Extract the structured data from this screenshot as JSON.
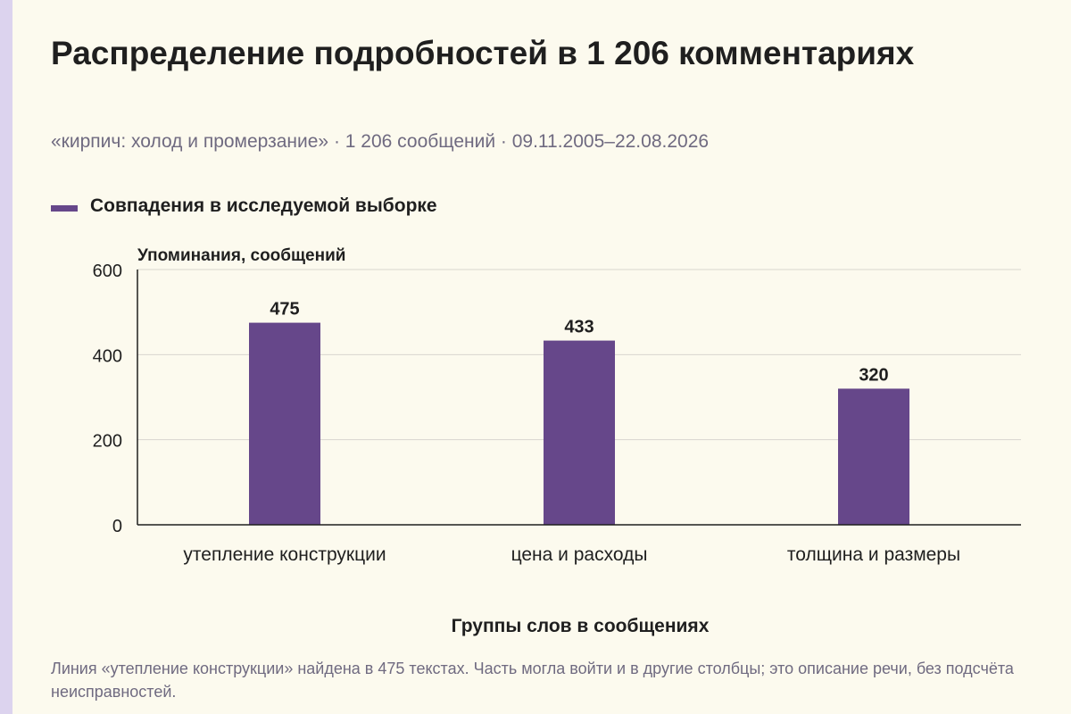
{
  "header": {
    "title": "Распределение подробностей в 1 206 комментариях",
    "subtitle": "«кирпич: холод и промерзание» · 1 206 сообщений · 09.11.2005–22.08.2026"
  },
  "legend": {
    "label": "Совпадения в исследуемой выборке",
    "color": "#66478a"
  },
  "chart_data": {
    "type": "bar",
    "categories": [
      "утепление конструкции",
      "цена и расходы",
      "толщина и размеры"
    ],
    "series": [
      {
        "name": "Совпадения в исследуемой выборке",
        "values": [
          475,
          433,
          320
        ],
        "color": "#66478a"
      }
    ],
    "data_labels": [
      "475",
      "433",
      "320"
    ],
    "ylabel": "Упоминания, сообщений",
    "xlabel": "Группы слов в сообщениях",
    "ylim": [
      0,
      600
    ],
    "yticks": [
      0,
      200,
      400,
      600
    ],
    "grid": true,
    "legend_position": "top-left"
  },
  "footnote": "Линия «утепление конструкции» найдена в 475 текстах. Часть могла войти и в другие столбцы; это описание речи, без подсчёта неисправностей."
}
